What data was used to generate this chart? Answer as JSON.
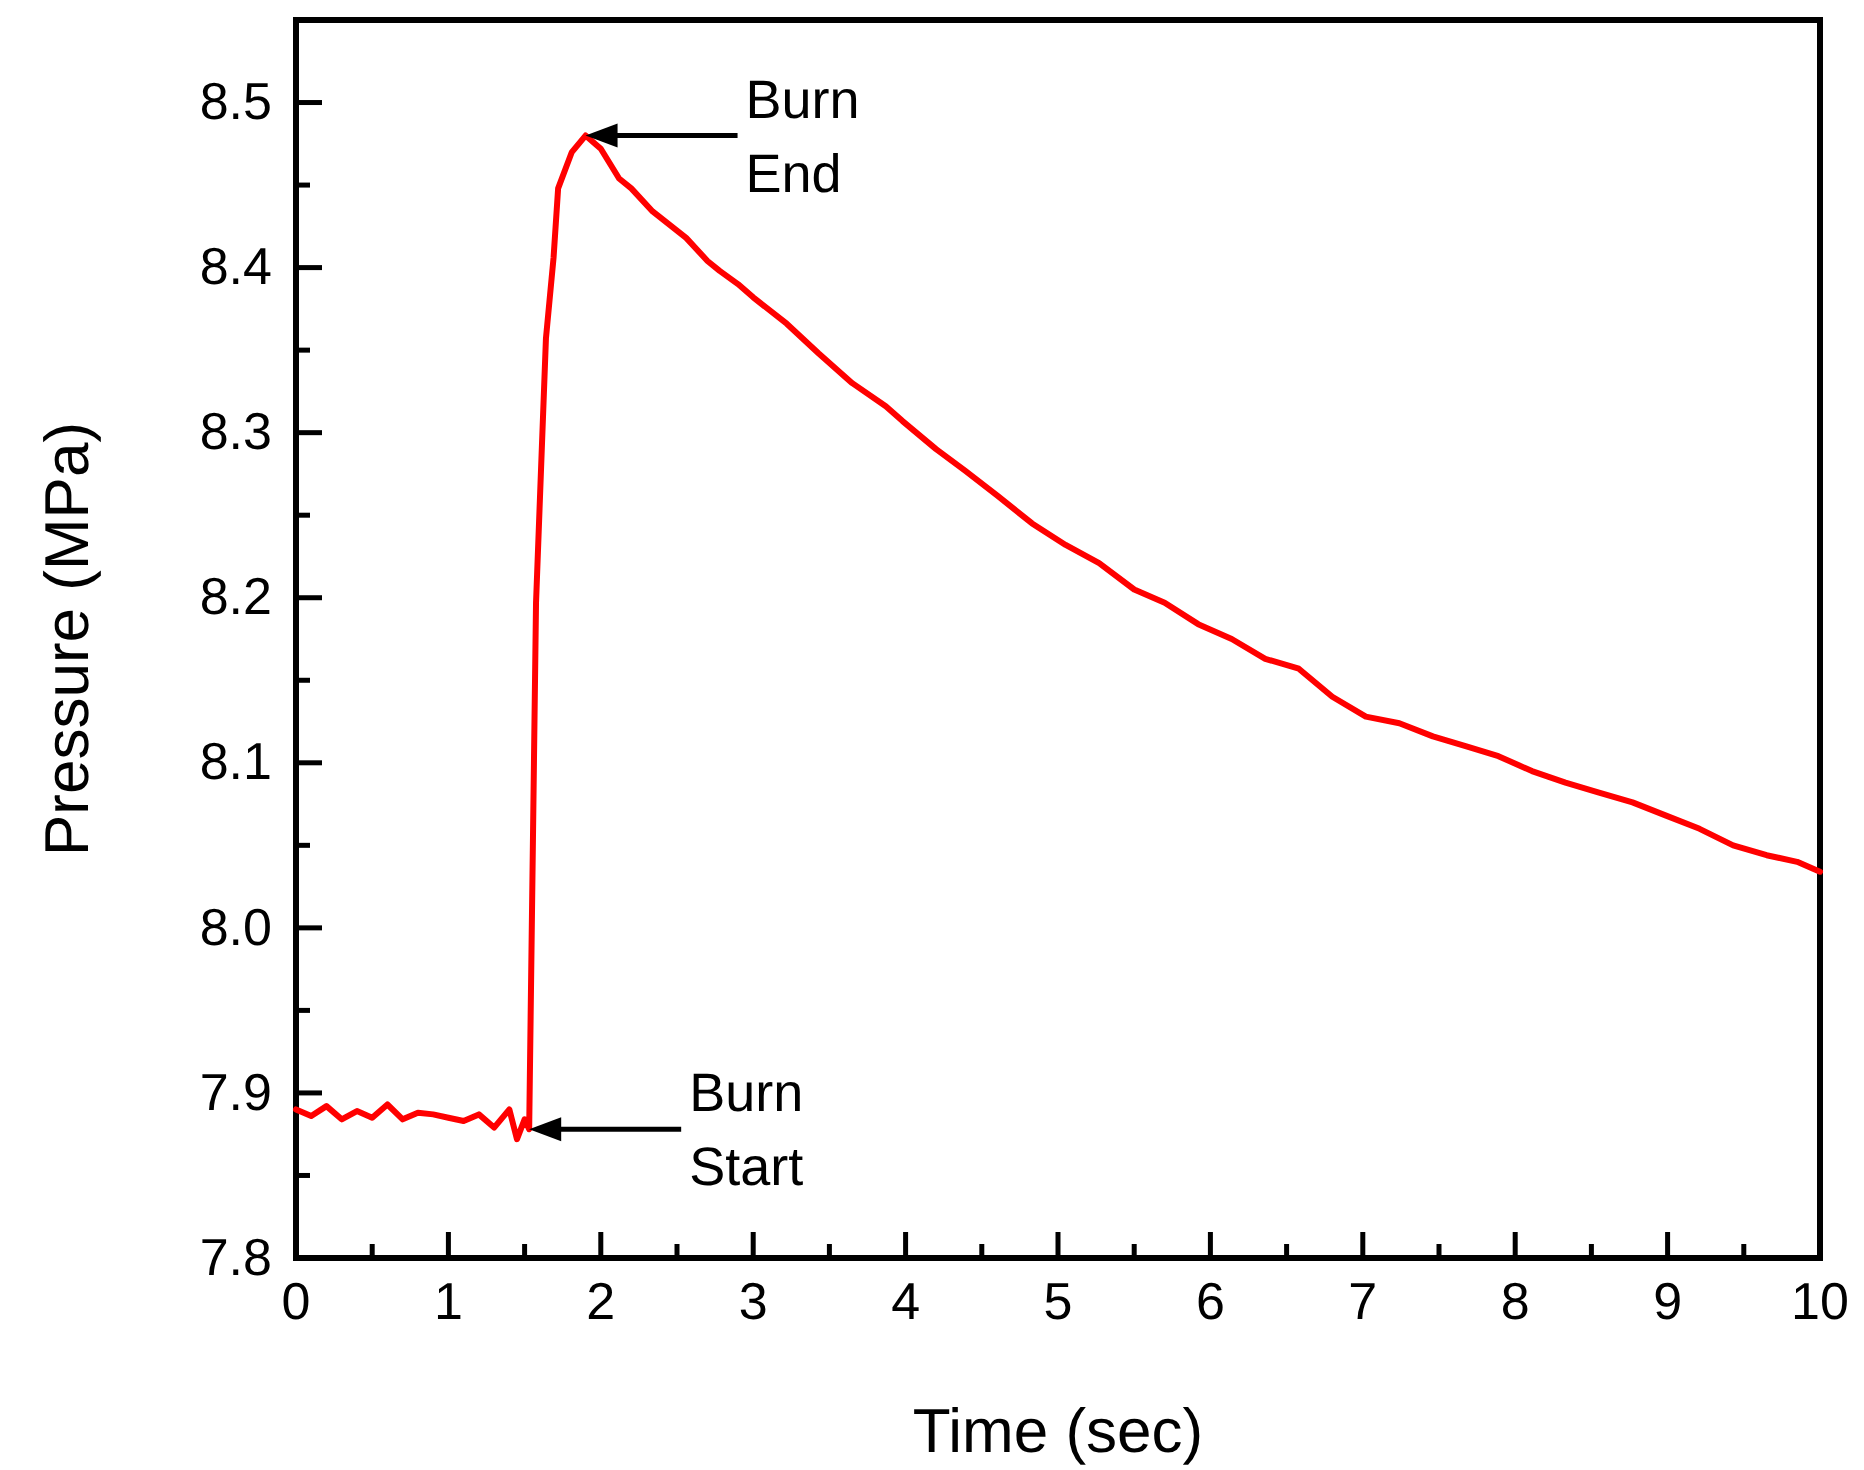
{
  "chart_data": {
    "type": "line",
    "xlabel": "Time (sec)",
    "ylabel": "Pressure (MPa)",
    "xlim": [
      0,
      10
    ],
    "ylim": [
      7.8,
      8.55
    ],
    "xticks": [
      0,
      {
        "value": 0.5,
        "label": null
      },
      1,
      {
        "value": 1.5,
        "label": null
      },
      2,
      {
        "value": 2.5,
        "label": null
      },
      3,
      {
        "value": 3.5,
        "label": null
      },
      4,
      {
        "value": 4.5,
        "label": null
      },
      5,
      {
        "value": 5.5,
        "label": null
      },
      6,
      {
        "value": 6.5,
        "label": null
      },
      7,
      {
        "value": 7.5,
        "label": null
      },
      8,
      {
        "value": 8.5,
        "label": null
      },
      9,
      {
        "value": 9.5,
        "label": null
      },
      10
    ],
    "yticks": [
      {
        "value": 7.8,
        "label": "7.8"
      },
      {
        "value": 7.85,
        "label": null
      },
      {
        "value": 7.9,
        "label": "7.9"
      },
      {
        "value": 7.95,
        "label": null
      },
      {
        "value": 8.0,
        "label": "8.0"
      },
      {
        "value": 8.05,
        "label": null
      },
      {
        "value": 8.1,
        "label": "8.1"
      },
      {
        "value": 8.15,
        "label": null
      },
      {
        "value": 8.2,
        "label": "8.2"
      },
      {
        "value": 8.25,
        "label": null
      },
      {
        "value": 8.3,
        "label": "8.3"
      },
      {
        "value": 8.35,
        "label": null
      },
      {
        "value": 8.4,
        "label": "8.4"
      },
      {
        "value": 8.45,
        "label": null
      },
      {
        "value": 8.5,
        "label": "8.5"
      }
    ],
    "grid": false,
    "marker": "none",
    "line_style": "solid",
    "annotations": [
      {
        "text": "Burn\nEnd",
        "x": 1.9,
        "y": 8.48
      },
      {
        "text": "Burn\nStart",
        "x": 1.53,
        "y": 7.878
      }
    ],
    "series": [
      {
        "color": "#ff0000",
        "x": [
          0,
          0.1,
          0.2,
          0.3,
          0.4,
          0.5,
          0.6,
          0.7,
          0.8,
          0.9,
          1.0,
          1.1,
          1.2,
          1.3,
          1.4,
          1.45,
          1.5,
          1.53,
          1.575,
          1.64,
          1.69,
          1.72,
          1.81,
          1.9,
          2.0,
          2.12,
          2.2,
          2.34,
          2.45,
          2.56,
          2.7,
          2.78,
          2.9,
          3.0,
          3.22,
          3.43,
          3.65,
          3.87,
          3.98,
          4.2,
          4.39,
          4.6,
          4.83,
          5.05,
          5.27,
          5.5,
          5.7,
          5.92,
          6.14,
          6.36,
          6.58,
          6.8,
          7.02,
          7.24,
          7.46,
          7.68,
          7.89,
          8.11,
          8.33,
          8.55,
          8.77,
          8.99,
          9.21,
          9.43,
          9.65,
          9.85,
          10
        ],
        "values": [
          7.89,
          7.886,
          7.892,
          7.884,
          7.889,
          7.885,
          7.893,
          7.884,
          7.888,
          7.887,
          7.885,
          7.883,
          7.887,
          7.879,
          7.89,
          7.872,
          7.884,
          7.878,
          8.197,
          8.357,
          8.406,
          8.448,
          8.47,
          8.48,
          8.472,
          8.454,
          8.448,
          8.434,
          8.426,
          8.418,
          8.404,
          8.398,
          8.39,
          8.382,
          8.366,
          8.348,
          8.33,
          8.316,
          8.307,
          8.29,
          8.277,
          8.262,
          8.245,
          8.232,
          8.221,
          8.205,
          8.197,
          8.184,
          8.175,
          8.163,
          8.157,
          8.14,
          8.128,
          8.124,
          8.116,
          8.11,
          8.104,
          8.095,
          8.088,
          8.082,
          8.076,
          8.068,
          8.06,
          8.05,
          8.044,
          8.04,
          8.034
        ]
      }
    ]
  }
}
